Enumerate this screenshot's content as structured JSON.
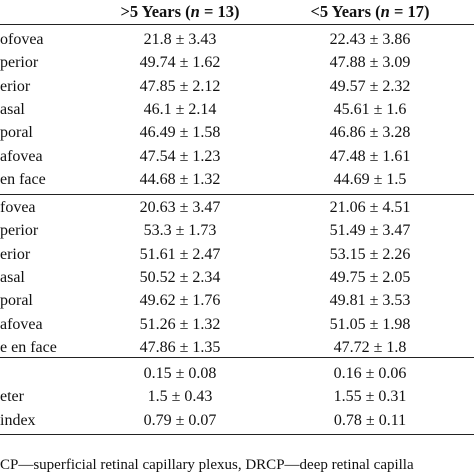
{
  "header": {
    "col1_prefix": ">5 Years (",
    "col1_n": "n",
    "col1_suffix": " = 13)",
    "col2_prefix": "<5 Years (",
    "col2_n": "n",
    "col2_suffix": " = 17)"
  },
  "section1": [
    {
      "label": "ofovea",
      "v1": "21.8 ± 3.43",
      "v2": "22.43 ± 3.86"
    },
    {
      "label": "perior",
      "v1": "49.74 ± 1.62",
      "v2": "47.88 ± 3.09"
    },
    {
      "label": "erior",
      "v1": "47.85 ± 2.12",
      "v2": "49.57 ± 2.32"
    },
    {
      "label": "asal",
      "v1": "46.1 ± 2.14",
      "v2": "45.61 ± 1.6"
    },
    {
      "label": "poral",
      "v1": "46.49 ± 1.58",
      "v2": "46.86 ± 3.28"
    },
    {
      "label": "afovea",
      "v1": "47.54 ± 1.23",
      "v2": "47.48 ± 1.61"
    },
    {
      "label": "en face",
      "v1": "44.68 ± 1.32",
      "v2": "44.69 ± 1.5"
    }
  ],
  "section2": [
    {
      "label": "fovea",
      "v1": "20.63 ± 3.47",
      "v2": "21.06 ± 4.51"
    },
    {
      "label": "perior",
      "v1": "53.3 ± 1.73",
      "v2": "51.49 ± 3.47"
    },
    {
      "label": "erior",
      "v1": "51.61 ± 2.47",
      "v2": "53.15 ± 2.26"
    },
    {
      "label": "asal",
      "v1": "50.52 ± 2.34",
      "v2": "49.75 ± 2.05"
    },
    {
      "label": "poral",
      "v1": "49.62 ± 1.76",
      "v2": "49.81 ± 3.53"
    },
    {
      "label": "afovea",
      "v1": "51.26 ± 1.32",
      "v2": "51.05 ± 1.98"
    },
    {
      "label": "e en face",
      "v1": "47.86 ± 1.35",
      "v2": "47.72 ± 1.8"
    }
  ],
  "section3": [
    {
      "label": "",
      "v1": "0.15 ± 0.08",
      "v2": "0.16 ± 0.06"
    },
    {
      "label": "eter",
      "v1": "1.5 ± 0.43",
      "v2": "1.55 ± 0.31"
    },
    {
      "label": "index",
      "v1": "0.79 ± 0.07",
      "v2": "0.78 ± 0.11"
    }
  ],
  "footnote": "CP—superficial retinal capillary plexus, DRCP—deep retinal capilla"
}
